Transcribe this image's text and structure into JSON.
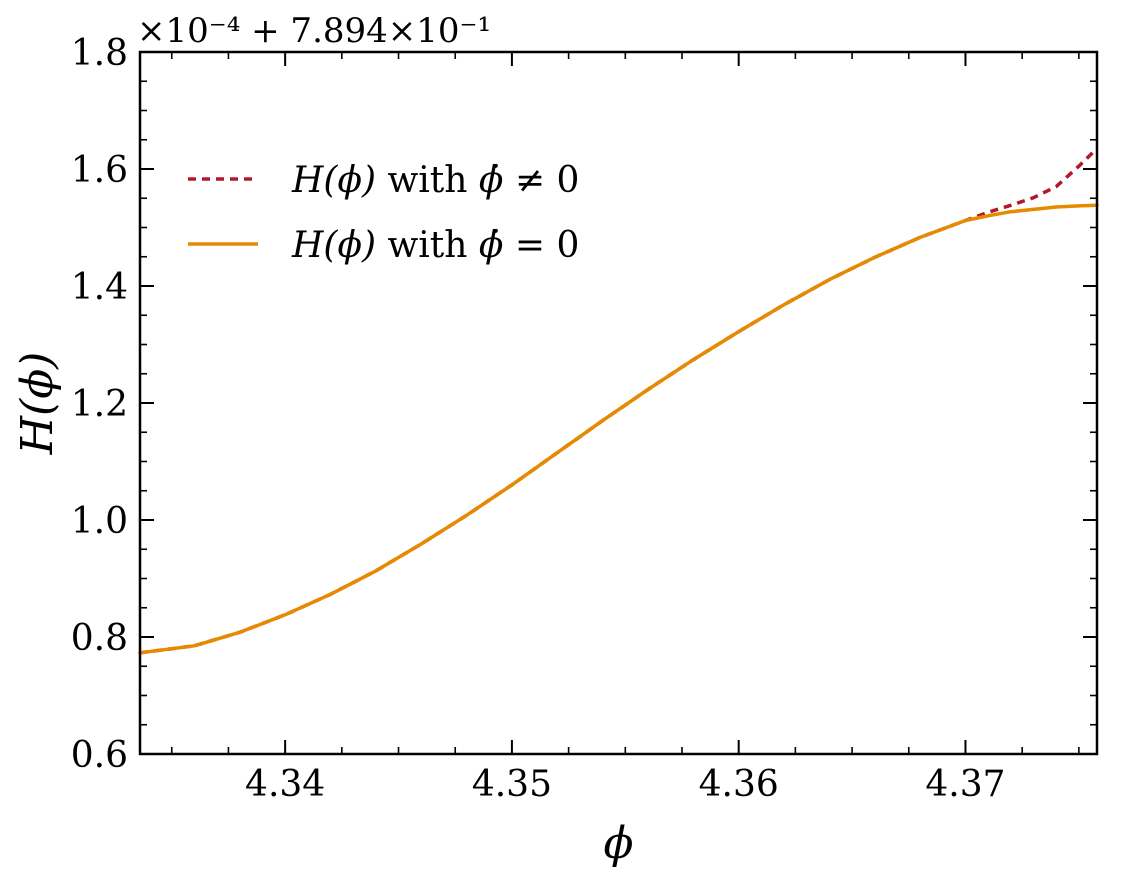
{
  "chart_data": {
    "type": "line",
    "xlabel": "ϕ",
    "ylabel": "H(ϕ)",
    "offset_text": "×10⁻⁴ + 7.894×10⁻¹",
    "xlim": [
      4.3336,
      4.3758
    ],
    "ylim": [
      0.6,
      1.8
    ],
    "xticks": [
      4.34,
      4.35,
      4.36,
      4.37
    ],
    "xtick_labels": [
      "4.34",
      "4.35",
      "4.36",
      "4.37"
    ],
    "yticks": [
      0.6,
      0.8,
      1.0,
      1.2,
      1.4,
      1.6,
      1.8
    ],
    "ytick_labels": [
      "0.6",
      "0.8",
      "1.0",
      "1.2",
      "1.4",
      "1.6",
      "1.8"
    ],
    "grid": false,
    "legend_position": "upper-left",
    "series": [
      {
        "name": "H(ϕ) with ϕ̇ ≠ 0",
        "legend_main": "H(ϕ)",
        "legend_mid": " with ",
        "legend_var": "ϕ̇",
        "legend_rel": " ≠ 0",
        "color": "#b2182b",
        "style": "dashed",
        "x": [
          4.3336,
          4.336,
          4.338,
          4.34,
          4.342,
          4.344,
          4.346,
          4.348,
          4.35,
          4.352,
          4.354,
          4.356,
          4.358,
          4.36,
          4.362,
          4.364,
          4.366,
          4.368,
          4.37,
          4.371,
          4.372,
          4.373,
          4.374,
          4.375,
          4.3758
        ],
        "y": [
          0.773,
          0.785,
          0.808,
          0.838,
          0.873,
          0.913,
          0.959,
          1.008,
          1.06,
          1.115,
          1.17,
          1.223,
          1.274,
          1.322,
          1.368,
          1.411,
          1.449,
          1.483,
          1.512,
          1.526,
          1.538,
          1.551,
          1.57,
          1.605,
          1.635
        ]
      },
      {
        "name": "H(ϕ) with ϕ̇ = 0",
        "legend_main": "H(ϕ)",
        "legend_mid": " with ",
        "legend_var": "ϕ̇",
        "legend_rel": " = 0",
        "color": "#e68a00",
        "style": "solid",
        "x": [
          4.3336,
          4.336,
          4.338,
          4.34,
          4.342,
          4.344,
          4.346,
          4.348,
          4.35,
          4.352,
          4.354,
          4.356,
          4.358,
          4.36,
          4.362,
          4.364,
          4.366,
          4.368,
          4.37,
          4.371,
          4.372,
          4.373,
          4.374,
          4.375,
          4.3758
        ],
        "y": [
          0.773,
          0.785,
          0.808,
          0.838,
          0.873,
          0.913,
          0.959,
          1.008,
          1.06,
          1.115,
          1.17,
          1.223,
          1.274,
          1.322,
          1.368,
          1.411,
          1.449,
          1.483,
          1.512,
          1.52,
          1.527,
          1.531,
          1.535,
          1.537,
          1.538
        ]
      }
    ]
  }
}
